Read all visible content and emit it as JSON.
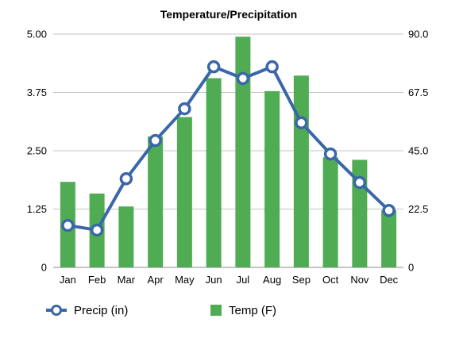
{
  "chart_data": {
    "type": "bar",
    "title": "Temperature/Precipitation",
    "categories": [
      "Jan",
      "Feb",
      "Mar",
      "Apr",
      "May",
      "Jun",
      "Jul",
      "Aug",
      "Sep",
      "Oct",
      "Nov",
      "Dec"
    ],
    "left_axis": {
      "ylim": [
        0,
        5
      ],
      "ticks": [
        "0",
        "1.25",
        "2.50",
        "3.75",
        "5.00"
      ],
      "tick_values": [
        0,
        1.25,
        2.5,
        3.75,
        5
      ]
    },
    "right_axis": {
      "ylim": [
        0,
        90
      ],
      "ticks": [
        "0",
        "22.5",
        "45.0",
        "67.5",
        "90.0"
      ],
      "tick_values": [
        0,
        22.5,
        45,
        67.5,
        90
      ]
    },
    "grid": true,
    "legend_position": "bottom",
    "series": [
      {
        "name": "Temp (F)",
        "type": "bar",
        "axis": "right",
        "color": "#4fac52",
        "values": [
          33,
          28.5,
          23.5,
          50.5,
          58,
          73,
          89,
          68,
          74,
          42.5,
          41.5,
          22
        ]
      },
      {
        "name": "Precip (in)",
        "type": "line",
        "axis": "left",
        "color": "#3a67a8",
        "values": [
          0.9,
          0.8,
          1.9,
          2.72,
          3.4,
          4.3,
          4.05,
          4.3,
          3.1,
          2.43,
          1.82,
          1.22
        ]
      }
    ]
  }
}
